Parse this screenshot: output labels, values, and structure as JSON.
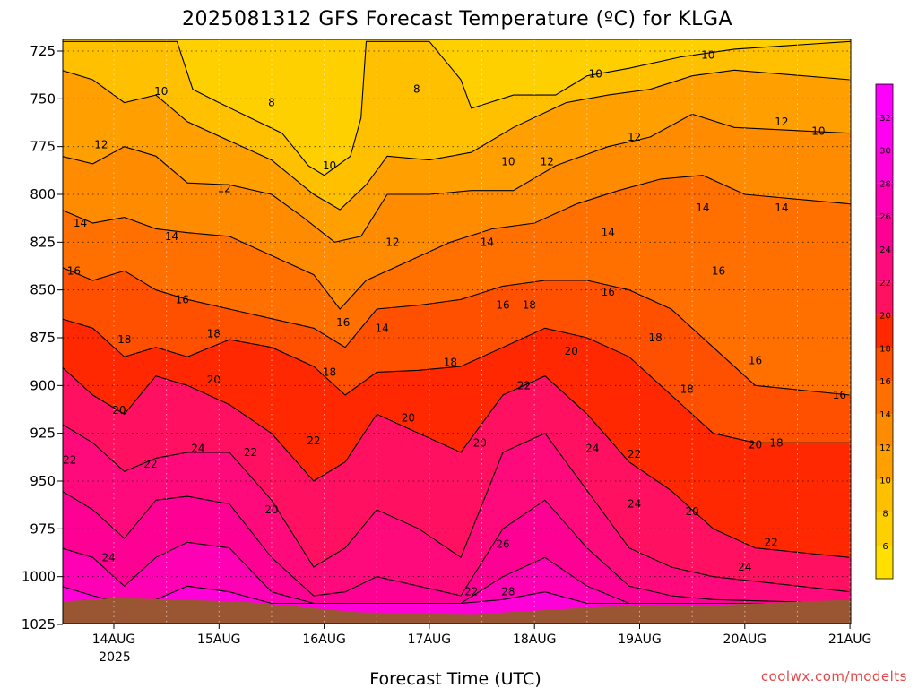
{
  "chart_data": {
    "type": "heatmap",
    "title": "2025081312 GFS Forecast Temperature (ºC) for KLGA",
    "xlabel": "Forecast Time (UTC)",
    "ylabel": "",
    "credit": "coolwx.com/modelts",
    "x_ticks": [
      "14AUG",
      "15AUG",
      "16AUG",
      "17AUG",
      "18AUG",
      "19AUG",
      "20AUG",
      "21AUG"
    ],
    "x_year": "2025",
    "y_ticks": [
      "725",
      "750",
      "775",
      "800",
      "825",
      "850",
      "875",
      "900",
      "925",
      "950",
      "975",
      "1000",
      "1025"
    ],
    "xlim": [
      "2025-08-13T12:00Z",
      "2025-08-21T00:00Z"
    ],
    "ylim": [
      1025,
      720
    ],
    "ground_pressure_hpa": 1014,
    "colorbar": {
      "ticks": [
        "6",
        "8",
        "10",
        "12",
        "14",
        "16",
        "18",
        "20",
        "22",
        "24",
        "26",
        "28",
        "30",
        "32"
      ],
      "range": [
        4,
        34
      ],
      "bands": [
        {
          "lo": 4,
          "hi": 6,
          "color": "#ffe000"
        },
        {
          "lo": 6,
          "hi": 8,
          "color": "#ffd000"
        },
        {
          "lo": 8,
          "hi": 10,
          "color": "#ffc000"
        },
        {
          "lo": 10,
          "hi": 12,
          "color": "#ffa000"
        },
        {
          "lo": 12,
          "hi": 14,
          "color": "#ff8c00"
        },
        {
          "lo": 14,
          "hi": 16,
          "color": "#ff7000"
        },
        {
          "lo": 16,
          "hi": 18,
          "color": "#ff5000"
        },
        {
          "lo": 18,
          "hi": 20,
          "color": "#ff2800"
        },
        {
          "lo": 20,
          "hi": 22,
          "color": "#ff1060"
        },
        {
          "lo": 22,
          "hi": 24,
          "color": "#ff0a7c"
        },
        {
          "lo": 24,
          "hi": 26,
          "color": "#ff0094"
        },
        {
          "lo": 26,
          "hi": 28,
          "color": "#ff00b4"
        },
        {
          "lo": 28,
          "hi": 30,
          "color": "#ff00d8"
        },
        {
          "lo": 30,
          "hi": 32,
          "color": "#ff00f0"
        },
        {
          "lo": 32,
          "hi": 34,
          "color": "#ff00ff"
        }
      ]
    },
    "contour_levels": [
      8,
      10,
      12,
      14,
      16,
      18,
      20,
      22,
      24,
      26,
      28
    ],
    "isotherm_series": [
      {
        "level": 8,
        "points": [
          [
            0.0,
            720
          ],
          [
            1.1,
            720
          ],
          [
            1.25,
            745
          ],
          [
            1.5,
            752
          ],
          [
            1.8,
            760
          ],
          [
            2.1,
            768
          ],
          [
            2.35,
            785
          ],
          [
            2.5,
            790
          ],
          [
            2.75,
            780
          ],
          [
            2.85,
            760
          ],
          [
            2.9,
            720
          ],
          [
            3.5,
            720
          ],
          [
            3.8,
            740
          ],
          [
            3.9,
            755
          ],
          [
            4.3,
            748
          ],
          [
            4.7,
            748
          ],
          [
            5.0,
            738
          ],
          [
            5.4,
            734
          ],
          [
            5.9,
            728
          ],
          [
            6.4,
            724
          ],
          [
            7.5,
            720
          ]
        ]
      },
      {
        "level": 10,
        "points": [
          [
            0.0,
            735
          ],
          [
            0.3,
            740
          ],
          [
            0.6,
            752
          ],
          [
            0.9,
            748
          ],
          [
            1.2,
            762
          ],
          [
            1.6,
            772
          ],
          [
            2.0,
            782
          ],
          [
            2.4,
            800
          ],
          [
            2.65,
            808
          ],
          [
            2.9,
            795
          ],
          [
            3.1,
            780
          ],
          [
            3.5,
            782
          ],
          [
            3.9,
            778
          ],
          [
            4.3,
            765
          ],
          [
            4.8,
            752
          ],
          [
            5.2,
            748
          ],
          [
            5.6,
            745
          ],
          [
            6.0,
            738
          ],
          [
            6.4,
            735
          ],
          [
            7.5,
            740
          ]
        ]
      },
      {
        "level": 12,
        "points": [
          [
            0.0,
            780
          ],
          [
            0.3,
            784
          ],
          [
            0.6,
            775
          ],
          [
            0.9,
            780
          ],
          [
            1.2,
            794
          ],
          [
            1.6,
            795
          ],
          [
            2.0,
            800
          ],
          [
            2.3,
            812
          ],
          [
            2.6,
            825
          ],
          [
            2.85,
            822
          ],
          [
            3.1,
            800
          ],
          [
            3.5,
            800
          ],
          [
            3.9,
            798
          ],
          [
            4.3,
            798
          ],
          [
            4.7,
            785
          ],
          [
            5.2,
            775
          ],
          [
            5.6,
            770
          ],
          [
            6.0,
            758
          ],
          [
            6.4,
            765
          ],
          [
            7.5,
            768
          ]
        ]
      },
      {
        "level": 14,
        "points": [
          [
            0.0,
            808
          ],
          [
            0.3,
            815
          ],
          [
            0.6,
            812
          ],
          [
            0.9,
            818
          ],
          [
            1.2,
            820
          ],
          [
            1.6,
            822
          ],
          [
            2.0,
            832
          ],
          [
            2.4,
            842
          ],
          [
            2.65,
            860
          ],
          [
            2.9,
            845
          ],
          [
            3.3,
            835
          ],
          [
            3.7,
            825
          ],
          [
            4.1,
            818
          ],
          [
            4.5,
            815
          ],
          [
            4.9,
            805
          ],
          [
            5.3,
            798
          ],
          [
            5.7,
            792
          ],
          [
            6.1,
            790
          ],
          [
            6.5,
            800
          ],
          [
            7.5,
            805
          ]
        ]
      },
      {
        "level": 16,
        "points": [
          [
            0.0,
            838
          ],
          [
            0.3,
            845
          ],
          [
            0.6,
            840
          ],
          [
            0.9,
            850
          ],
          [
            1.2,
            855
          ],
          [
            1.6,
            860
          ],
          [
            2.0,
            865
          ],
          [
            2.4,
            870
          ],
          [
            2.7,
            880
          ],
          [
            3.0,
            860
          ],
          [
            3.4,
            858
          ],
          [
            3.8,
            855
          ],
          [
            4.2,
            848
          ],
          [
            4.6,
            845
          ],
          [
            5.0,
            845
          ],
          [
            5.4,
            850
          ],
          [
            5.8,
            860
          ],
          [
            6.2,
            880
          ],
          [
            6.6,
            900
          ],
          [
            7.5,
            905
          ]
        ]
      },
      {
        "level": 18,
        "points": [
          [
            0.0,
            865
          ],
          [
            0.3,
            870
          ],
          [
            0.6,
            885
          ],
          [
            0.9,
            880
          ],
          [
            1.2,
            885
          ],
          [
            1.6,
            876
          ],
          [
            2.0,
            880
          ],
          [
            2.4,
            890
          ],
          [
            2.7,
            905
          ],
          [
            3.0,
            893
          ],
          [
            3.4,
            892
          ],
          [
            3.8,
            890
          ],
          [
            4.2,
            880
          ],
          [
            4.6,
            870
          ],
          [
            5.0,
            875
          ],
          [
            5.4,
            885
          ],
          [
            5.8,
            905
          ],
          [
            6.2,
            925
          ],
          [
            6.6,
            930
          ],
          [
            7.5,
            930
          ]
        ]
      },
      {
        "level": 20,
        "points": [
          [
            0.0,
            890
          ],
          [
            0.3,
            905
          ],
          [
            0.6,
            915
          ],
          [
            0.9,
            895
          ],
          [
            1.2,
            900
          ],
          [
            1.6,
            910
          ],
          [
            2.0,
            925
          ],
          [
            2.4,
            950
          ],
          [
            2.7,
            940
          ],
          [
            3.0,
            915
          ],
          [
            3.4,
            925
          ],
          [
            3.8,
            935
          ],
          [
            4.2,
            905
          ],
          [
            4.6,
            895
          ],
          [
            5.0,
            915
          ],
          [
            5.4,
            940
          ],
          [
            5.8,
            955
          ],
          [
            6.2,
            975
          ],
          [
            6.6,
            985
          ],
          [
            7.5,
            990
          ]
        ]
      },
      {
        "level": 22,
        "points": [
          [
            0.0,
            920
          ],
          [
            0.3,
            930
          ],
          [
            0.6,
            945
          ],
          [
            0.9,
            938
          ],
          [
            1.2,
            935
          ],
          [
            1.6,
            935
          ],
          [
            2.0,
            960
          ],
          [
            2.4,
            995
          ],
          [
            2.7,
            985
          ],
          [
            3.0,
            965
          ],
          [
            3.4,
            975
          ],
          [
            3.8,
            990
          ],
          [
            4.2,
            935
          ],
          [
            4.6,
            925
          ],
          [
            5.0,
            955
          ],
          [
            5.4,
            985
          ],
          [
            5.8,
            995
          ],
          [
            6.2,
            1000
          ],
          [
            7.5,
            1008
          ]
        ]
      },
      {
        "level": 24,
        "points": [
          [
            0.0,
            955
          ],
          [
            0.3,
            965
          ],
          [
            0.6,
            980
          ],
          [
            0.9,
            960
          ],
          [
            1.2,
            958
          ],
          [
            1.6,
            962
          ],
          [
            2.0,
            990
          ],
          [
            2.4,
            1010
          ],
          [
            2.7,
            1008
          ],
          [
            3.0,
            1000
          ],
          [
            3.4,
            1005
          ],
          [
            3.8,
            1010
          ],
          [
            4.2,
            975
          ],
          [
            4.6,
            960
          ],
          [
            5.0,
            985
          ],
          [
            5.4,
            1005
          ],
          [
            5.8,
            1010
          ],
          [
            6.2,
            1012
          ],
          [
            7.5,
            1014
          ]
        ]
      },
      {
        "level": 26,
        "points": [
          [
            0.0,
            985
          ],
          [
            0.3,
            990
          ],
          [
            0.6,
            1005
          ],
          [
            0.9,
            990
          ],
          [
            1.2,
            982
          ],
          [
            1.6,
            985
          ],
          [
            2.0,
            1008
          ],
          [
            2.4,
            1014
          ],
          [
            3.8,
            1014
          ],
          [
            4.2,
            1000
          ],
          [
            4.6,
            990
          ],
          [
            5.0,
            1005
          ],
          [
            5.4,
            1014
          ],
          [
            7.5,
            1014
          ]
        ]
      },
      {
        "level": 28,
        "points": [
          [
            0.0,
            1005
          ],
          [
            0.3,
            1010
          ],
          [
            0.6,
            1014
          ],
          [
            0.9,
            1012
          ],
          [
            1.2,
            1005
          ],
          [
            1.6,
            1008
          ],
          [
            2.0,
            1014
          ],
          [
            3.8,
            1014
          ],
          [
            4.2,
            1012
          ],
          [
            4.6,
            1008
          ],
          [
            5.0,
            1014
          ],
          [
            7.5,
            1014
          ]
        ]
      }
    ],
    "contour_labels": [
      {
        "text": "8",
        "x": 2.0,
        "p": 752
      },
      {
        "text": "8",
        "x": 3.38,
        "p": 745
      },
      {
        "text": "10",
        "x": 0.95,
        "p": 746
      },
      {
        "text": "10",
        "x": 2.55,
        "p": 785
      },
      {
        "text": "10",
        "x": 4.25,
        "p": 783
      },
      {
        "text": "10",
        "x": 5.08,
        "p": 737
      },
      {
        "text": "10",
        "x": 6.15,
        "p": 727
      },
      {
        "text": "10",
        "x": 7.2,
        "p": 767
      },
      {
        "text": "12",
        "x": 0.38,
        "p": 774
      },
      {
        "text": "12",
        "x": 1.55,
        "p": 797
      },
      {
        "text": "12",
        "x": 3.15,
        "p": 825
      },
      {
        "text": "12",
        "x": 4.62,
        "p": 783
      },
      {
        "text": "12",
        "x": 5.45,
        "p": 770
      },
      {
        "text": "12",
        "x": 6.85,
        "p": 762
      },
      {
        "text": "14",
        "x": 0.18,
        "p": 815
      },
      {
        "text": "14",
        "x": 1.05,
        "p": 822
      },
      {
        "text": "14",
        "x": 4.05,
        "p": 825
      },
      {
        "text": "14",
        "x": 5.2,
        "p": 820
      },
      {
        "text": "14",
        "x": 3.05,
        "p": 870
      },
      {
        "text": "14",
        "x": 6.1,
        "p": 807
      },
      {
        "text": "14",
        "x": 6.85,
        "p": 807
      },
      {
        "text": "16",
        "x": 0.12,
        "p": 840
      },
      {
        "text": "16",
        "x": 1.15,
        "p": 855
      },
      {
        "text": "16",
        "x": 2.68,
        "p": 867
      },
      {
        "text": "16",
        "x": 4.2,
        "p": 858
      },
      {
        "text": "16",
        "x": 5.2,
        "p": 851
      },
      {
        "text": "16",
        "x": 6.25,
        "p": 840
      },
      {
        "text": "16",
        "x": 6.6,
        "p": 887
      },
      {
        "text": "16",
        "x": 7.4,
        "p": 905
      },
      {
        "text": "18",
        "x": 1.45,
        "p": 873
      },
      {
        "text": "18",
        "x": 0.6,
        "p": 876
      },
      {
        "text": "18",
        "x": 2.55,
        "p": 893
      },
      {
        "text": "18",
        "x": 3.7,
        "p": 888
      },
      {
        "text": "18",
        "x": 4.45,
        "p": 858
      },
      {
        "text": "18",
        "x": 5.65,
        "p": 875
      },
      {
        "text": "18",
        "x": 5.95,
        "p": 902
      },
      {
        "text": "18",
        "x": 6.8,
        "p": 930
      },
      {
        "text": "20",
        "x": 0.55,
        "p": 913
      },
      {
        "text": "20",
        "x": 1.45,
        "p": 897
      },
      {
        "text": "20",
        "x": 2.0,
        "p": 965
      },
      {
        "text": "20",
        "x": 3.3,
        "p": 917
      },
      {
        "text": "20",
        "x": 3.98,
        "p": 930
      },
      {
        "text": "20",
        "x": 4.85,
        "p": 882
      },
      {
        "text": "20",
        "x": 6.0,
        "p": 966
      },
      {
        "text": "20",
        "x": 6.6,
        "p": 931
      },
      {
        "text": "22",
        "x": 0.08,
        "p": 939
      },
      {
        "text": "22",
        "x": 0.85,
        "p": 941
      },
      {
        "text": "22",
        "x": 1.8,
        "p": 935
      },
      {
        "text": "22",
        "x": 2.4,
        "p": 929
      },
      {
        "text": "22",
        "x": 4.4,
        "p": 900
      },
      {
        "text": "22",
        "x": 5.45,
        "p": 936
      },
      {
        "text": "22",
        "x": 6.75,
        "p": 982
      },
      {
        "text": "22",
        "x": 3.9,
        "p": 1008
      },
      {
        "text": "24",
        "x": 0.45,
        "p": 990
      },
      {
        "text": "24",
        "x": 1.3,
        "p": 933
      },
      {
        "text": "24",
        "x": 5.05,
        "p": 933
      },
      {
        "text": "24",
        "x": 5.45,
        "p": 962
      },
      {
        "text": "24",
        "x": 6.5,
        "p": 995
      },
      {
        "text": "26",
        "x": 4.2,
        "p": 983
      },
      {
        "text": "28",
        "x": 4.25,
        "p": 1008
      }
    ]
  }
}
